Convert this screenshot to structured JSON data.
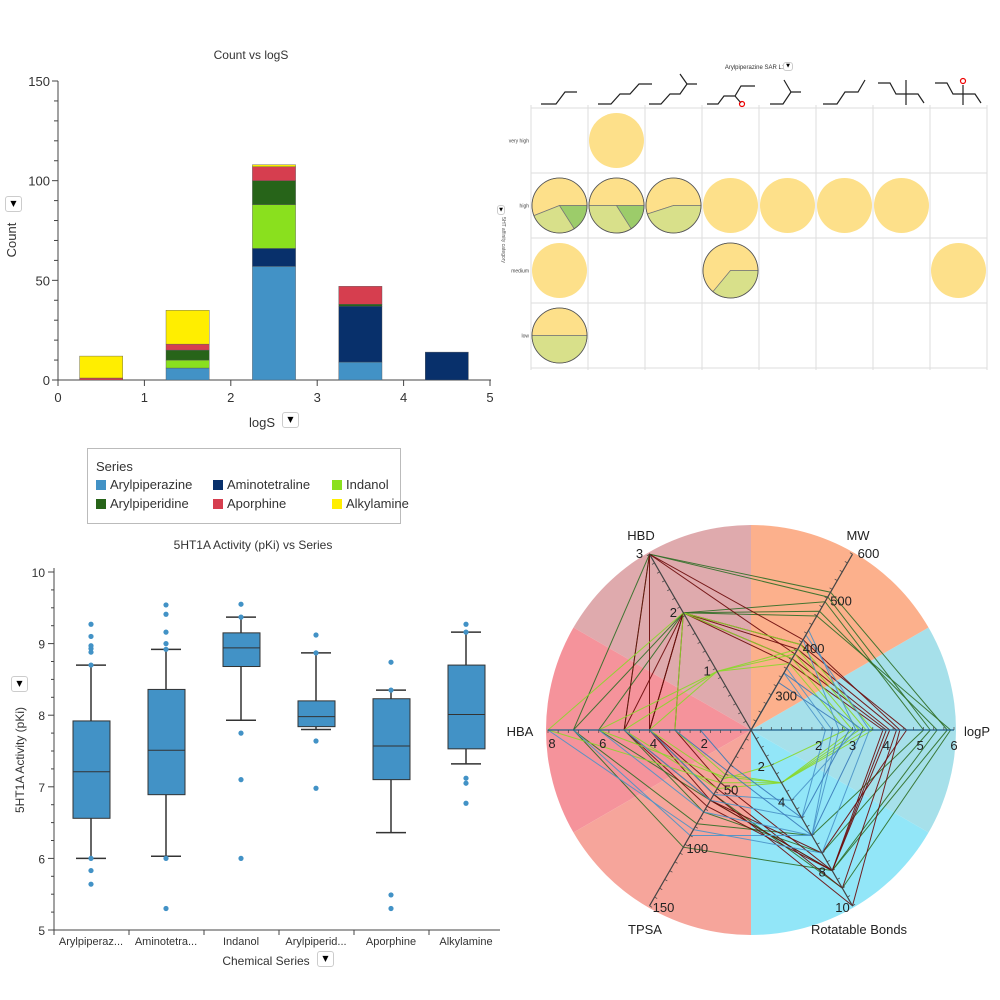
{
  "series_colors": {
    "Arylpiperazine": "#4292c6",
    "Aminotetraline": "#08306b",
    "Indanol": "#8ae01e",
    "Arylpiperidine": "#276419",
    "Aporphine": "#d63e4f",
    "Alkylamine": "#ffee00"
  },
  "legend": {
    "title": "Series",
    "items": [
      "Arylpiperazine",
      "Aminotetraline",
      "Indanol",
      "Arylpiperidine",
      "Aporphine",
      "Alkylamine"
    ]
  },
  "chart_data": [
    {
      "type": "bar",
      "stacked": true,
      "title": "Count vs logS",
      "xlabel": "logS",
      "ylabel": "Count",
      "xlim": [
        0,
        5
      ],
      "ylim": [
        0,
        150
      ],
      "xticks": [
        "0",
        "1",
        "2",
        "3",
        "4",
        "5"
      ],
      "yticks": [
        "0",
        "50",
        "100",
        "150"
      ],
      "categories": [
        0.5,
        1.5,
        2.5,
        3.5,
        4.5
      ],
      "series": [
        {
          "name": "Arylpiperazine",
          "values": [
            0,
            6,
            57,
            9,
            0
          ]
        },
        {
          "name": "Aminotetraline",
          "values": [
            0,
            0,
            9,
            28,
            14
          ]
        },
        {
          "name": "Indanol",
          "values": [
            0,
            4,
            22,
            0,
            0
          ]
        },
        {
          "name": "Arylpiperidine",
          "values": [
            0,
            5,
            12,
            1,
            0
          ]
        },
        {
          "name": "Aporphine",
          "values": [
            1,
            3,
            7,
            9,
            0
          ]
        },
        {
          "name": "Alkylamine",
          "values": [
            11,
            17,
            1,
            0,
            0
          ]
        }
      ]
    },
    {
      "type": "box",
      "title": "5HT1A Activity (pKi) vs Series",
      "xlabel": "Chemical Series",
      "ylabel": "5HT1A Activity (pKi)",
      "ylim": [
        5,
        10
      ],
      "yticks": [
        "5",
        "6",
        "7",
        "8",
        "9",
        "10"
      ],
      "categories": [
        "Arylpiperaz...",
        "Aminotetra...",
        "Indanol",
        "Arylpiperid...",
        "Aporphine",
        "Alkylamine"
      ],
      "boxes": [
        {
          "low": 6.0,
          "q1": 6.56,
          "median": 7.21,
          "q3": 7.92,
          "high": 8.7,
          "outliers": [
            9.27,
            9.1,
            8.97,
            8.93,
            8.88,
            8.7,
            6.0,
            5.83,
            5.64
          ]
        },
        {
          "low": 6.03,
          "q1": 6.89,
          "median": 7.51,
          "q3": 8.36,
          "high": 8.92,
          "outliers": [
            9.54,
            9.41,
            9.16,
            9.0,
            8.92,
            6.0,
            5.3
          ]
        },
        {
          "low": 7.93,
          "q1": 8.68,
          "median": 8.94,
          "q3": 9.15,
          "high": 9.37,
          "outliers": [
            9.55,
            9.37,
            7.75,
            7.1,
            6.0
          ]
        },
        {
          "low": 7.8,
          "q1": 7.84,
          "median": 7.98,
          "q3": 8.2,
          "high": 8.87,
          "outliers": [
            9.12,
            8.87,
            7.64,
            6.98
          ]
        },
        {
          "low": 6.36,
          "q1": 7.1,
          "median": 7.57,
          "q3": 8.23,
          "high": 8.35,
          "outliers": [
            8.74,
            8.35,
            5.49,
            5.3
          ]
        },
        {
          "low": 7.32,
          "q1": 7.53,
          "median": 8.01,
          "q3": 8.7,
          "high": 9.16,
          "outliers": [
            9.27,
            9.16,
            7.12,
            7.05,
            6.77
          ]
        }
      ]
    },
    {
      "type": "pie-grid",
      "title": "Arylpiperazine SAR L1",
      "ylabel": "5HT affinity category",
      "rows": [
        "very high",
        "high",
        "medium",
        "low"
      ],
      "slice_colors": [
        "#fde08a",
        "#d8e08a",
        "#9ccc6a"
      ],
      "cells": [
        {
          "row": 0,
          "col": 1,
          "fractions": [
            1
          ]
        },
        {
          "row": 1,
          "col": 0,
          "fractions": [
            0.56,
            0.28,
            0.16
          ]
        },
        {
          "row": 1,
          "col": 1,
          "fractions": [
            0.5,
            0.34,
            0.16
          ]
        },
        {
          "row": 1,
          "col": 2,
          "fractions": [
            0.55,
            0.45
          ]
        },
        {
          "row": 1,
          "col": 3,
          "fractions": [
            1
          ]
        },
        {
          "row": 1,
          "col": 4,
          "fractions": [
            1
          ]
        },
        {
          "row": 1,
          "col": 5,
          "fractions": [
            1
          ]
        },
        {
          "row": 1,
          "col": 6,
          "fractions": [
            1
          ]
        },
        {
          "row": 2,
          "col": 0,
          "fractions": [
            1
          ]
        },
        {
          "row": 2,
          "col": 3,
          "fractions": [
            0.64,
            0.36
          ]
        },
        {
          "row": 2,
          "col": 7,
          "fractions": [
            1
          ]
        },
        {
          "row": 3,
          "col": 0,
          "fractions": [
            0.5,
            0.5
          ]
        }
      ]
    },
    {
      "type": "radar",
      "axes": [
        {
          "name": "logP",
          "range": [
            0,
            6
          ],
          "ticks": [
            "2",
            "3",
            "4",
            "5",
            "6"
          ]
        },
        {
          "name": "MW",
          "range": [
            230,
            600
          ],
          "ticks": [
            "300",
            "400",
            "500",
            "600"
          ]
        },
        {
          "name": "HBD",
          "range": [
            0,
            3
          ],
          "ticks": [
            "1",
            "2",
            "3"
          ]
        },
        {
          "name": "HBA",
          "range": [
            0,
            8
          ],
          "ticks": [
            "2",
            "4",
            "6",
            "8"
          ]
        },
        {
          "name": "TPSA",
          "range": [
            0,
            150
          ],
          "ticks": [
            "50",
            "100",
            "150"
          ]
        },
        {
          "name": "Rotatable Bonds",
          "range": [
            0,
            10
          ],
          "ticks": [
            "2",
            "4",
            "8",
            "10"
          ]
        }
      ],
      "sector_colors": [
        "#a6e0ea",
        "#fcb08c",
        "#dfaaad",
        "#f5939b",
        "#f6a59b",
        "#92e6f8"
      ],
      "lines": [
        {
          "series": "Arylpiperidine",
          "values": [
            5.8,
            520,
            3,
            7,
            100,
            8
          ]
        },
        {
          "series": "Arylpiperidine",
          "values": [
            5.5,
            480,
            2,
            6,
            60,
            8
          ]
        },
        {
          "series": "Arylpiperidine",
          "values": [
            5.3,
            510,
            3,
            5,
            70,
            7
          ]
        },
        {
          "series": "Arylpiperidine",
          "values": [
            5.9,
            470,
            2,
            4,
            55,
            9
          ]
        },
        {
          "series": "Arylpiperidine",
          "values": [
            5.1,
            500,
            2,
            7,
            80,
            6
          ]
        },
        {
          "series": "Aporphine",
          "values": [
            4.1,
            390,
            3,
            5,
            60,
            8
          ]
        },
        {
          "series": "Aporphine",
          "values": [
            4.3,
            400,
            2,
            4,
            50,
            9
          ]
        },
        {
          "series": "Aporphine",
          "values": [
            4.0,
            380,
            2,
            5,
            65,
            8
          ]
        },
        {
          "series": "Aporphine",
          "values": [
            4.4,
            420,
            3,
            4,
            55,
            10
          ]
        },
        {
          "series": "Aporphine",
          "values": [
            3.9,
            370,
            2,
            3,
            45,
            8
          ]
        },
        {
          "series": "Aporphine",
          "values": [
            4.6,
            410,
            2,
            4,
            60,
            7
          ]
        },
        {
          "series": "Indanol",
          "values": [
            3.2,
            390,
            1,
            6,
            40,
            3
          ]
        },
        {
          "series": "Indanol",
          "values": [
            3.0,
            380,
            2,
            8,
            45,
            3
          ]
        },
        {
          "series": "Indanol",
          "values": [
            3.4,
            400,
            1,
            5,
            50,
            3
          ]
        },
        {
          "series": "Indanol",
          "values": [
            2.8,
            370,
            1,
            4,
            42,
            2
          ]
        },
        {
          "series": "Indanol",
          "values": [
            3.6,
            410,
            2,
            3,
            38,
            3
          ]
        },
        {
          "series": "Arylpiperazine",
          "values": [
            2.2,
            350,
            0,
            5,
            60,
            5
          ]
        },
        {
          "series": "Arylpiperazine",
          "values": [
            2.6,
            420,
            0,
            7,
            90,
            6
          ]
        },
        {
          "series": "Arylpiperazine",
          "values": [
            3.1,
            440,
            0,
            4,
            55,
            4
          ]
        },
        {
          "series": "Arylpiperazine",
          "values": [
            2.4,
            360,
            0,
            6,
            70,
            6
          ]
        },
        {
          "series": "Arylpiperazine",
          "values": [
            3.5,
            430,
            0,
            8,
            85,
            7
          ]
        },
        {
          "series": "Aminotetraline",
          "values": [
            2.9,
            330,
            0,
            2,
            30,
            5
          ]
        },
        {
          "series": "Aminotetraline",
          "values": [
            3.3,
            350,
            0,
            3,
            35,
            6
          ]
        }
      ]
    }
  ]
}
